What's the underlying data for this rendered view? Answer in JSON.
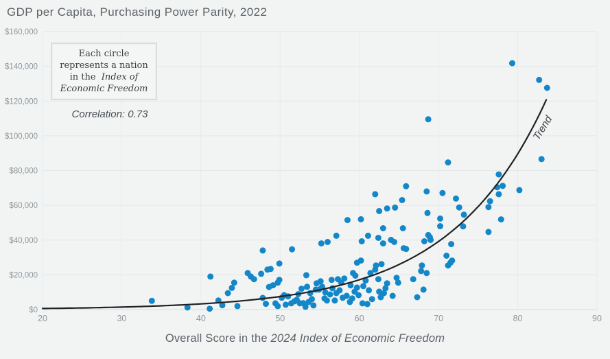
{
  "title": "GDP per Capita, Purchasing Power Parity, 2022",
  "annotation": {
    "line1": "Each circle",
    "line2": "represents a nation",
    "line3_regular": "in the  ",
    "line3_italic": "Index of",
    "line4_italic": "Economic Freedom"
  },
  "correlation_label": "Correlation: 0.73",
  "trend_label": "Trend",
  "x_axis_title": {
    "regular": "Overall Score in the ",
    "italic": "2024 Index of Economic Freedom"
  },
  "colors": {
    "background": "#f2f4f4",
    "point": "#1487c8",
    "trend": "#202124",
    "grid_horizontal": "#e2e6e7",
    "grid_vertical": "#e7eaeb",
    "baseline": "#d8dddf",
    "tick_text": "#8f969b",
    "title_text": "#5d6267"
  },
  "chart_data": {
    "type": "scatter",
    "title": "GDP per Capita, Purchasing Power Parity, 2022",
    "xlabel": "Overall Score in the 2024 Index of Economic Freedom",
    "ylabel": "",
    "xlim": [
      20,
      90
    ],
    "ylim": [
      0,
      160000
    ],
    "xticks": [
      20,
      30,
      40,
      50,
      60,
      70,
      80,
      90
    ],
    "yticks": [
      0,
      20000,
      40000,
      60000,
      80000,
      100000,
      120000,
      140000,
      160000
    ],
    "ytick_labels": [
      "$0",
      "$20,000",
      "$40,000",
      "$60,000",
      "$80,000",
      "$100,000",
      "$120,000",
      "$140,000",
      "$160,000"
    ],
    "grid": true,
    "correlation": 0.73,
    "annotation_text": "Each circle represents a nation in the Index of Economic Freedom",
    "trend": {
      "type": "exponential",
      "a": 120,
      "b": 0.0827,
      "x_start": 20,
      "x_end": 83.8,
      "label": "Trend"
    },
    "points": [
      [
        33.8,
        5000
      ],
      [
        38.3,
        1200
      ],
      [
        41.1,
        500
      ],
      [
        41.2,
        19000
      ],
      [
        42.2,
        5200
      ],
      [
        42.7,
        2500
      ],
      [
        43.4,
        9500
      ],
      [
        43.9,
        12500
      ],
      [
        44.2,
        15500
      ],
      [
        44.6,
        2000
      ],
      [
        45.9,
        21000
      ],
      [
        46.3,
        19000
      ],
      [
        46.7,
        17500
      ],
      [
        47.6,
        20600
      ],
      [
        47.8,
        6700
      ],
      [
        47.8,
        34000
      ],
      [
        48.2,
        3300
      ],
      [
        48.4,
        23000
      ],
      [
        48.6,
        13000
      ],
      [
        48.8,
        23400
      ],
      [
        49.1,
        14000
      ],
      [
        49.4,
        3600
      ],
      [
        49.7,
        15500
      ],
      [
        49.7,
        2000
      ],
      [
        49.9,
        17100
      ],
      [
        49.9,
        26500
      ],
      [
        50.2,
        6800
      ],
      [
        50.5,
        8300
      ],
      [
        50.7,
        2800
      ],
      [
        51.0,
        7600
      ],
      [
        51.4,
        3600
      ],
      [
        51.5,
        34700
      ],
      [
        51.8,
        4800
      ],
      [
        52.1,
        5600
      ],
      [
        52.3,
        8900
      ],
      [
        52.5,
        3600
      ],
      [
        52.7,
        12000
      ],
      [
        52.9,
        3700
      ],
      [
        53.2,
        1600
      ],
      [
        53.3,
        19800
      ],
      [
        53.4,
        13100
      ],
      [
        53.6,
        4400
      ],
      [
        53.8,
        9500
      ],
      [
        54.0,
        6000
      ],
      [
        54.2,
        2400
      ],
      [
        54.5,
        11500
      ],
      [
        54.6,
        15100
      ],
      [
        54.9,
        11500
      ],
      [
        55.1,
        16300
      ],
      [
        55.2,
        38100
      ],
      [
        55.3,
        13100
      ],
      [
        55.6,
        6400
      ],
      [
        55.7,
        9900
      ],
      [
        55.9,
        5200
      ],
      [
        56.0,
        38900
      ],
      [
        56.3,
        8700
      ],
      [
        56.5,
        17100
      ],
      [
        56.6,
        12300
      ],
      [
        56.9,
        5200
      ],
      [
        57.1,
        9500
      ],
      [
        57.1,
        42500
      ],
      [
        57.3,
        17500
      ],
      [
        57.5,
        11100
      ],
      [
        57.7,
        15500
      ],
      [
        57.9,
        6800
      ],
      [
        58.1,
        17900
      ],
      [
        58.4,
        7900
      ],
      [
        58.5,
        51500
      ],
      [
        58.8,
        4400
      ],
      [
        58.9,
        13900
      ],
      [
        59.1,
        6400
      ],
      [
        59.2,
        21000
      ],
      [
        59.4,
        10300
      ],
      [
        59.5,
        19500
      ],
      [
        59.7,
        27000
      ],
      [
        59.7,
        12700
      ],
      [
        59.9,
        8300
      ],
      [
        60.2,
        28200
      ],
      [
        60.2,
        52000
      ],
      [
        60.3,
        39300
      ],
      [
        60.4,
        3600
      ],
      [
        60.5,
        13500
      ],
      [
        60.8,
        16700
      ],
      [
        61.0,
        3200
      ],
      [
        61.1,
        42500
      ],
      [
        61.2,
        11100
      ],
      [
        61.4,
        21000
      ],
      [
        61.6,
        6000
      ],
      [
        62.0,
        23000
      ],
      [
        62.0,
        66400
      ],
      [
        62.1,
        25400
      ],
      [
        62.4,
        41300
      ],
      [
        62.4,
        17500
      ],
      [
        62.5,
        10300
      ],
      [
        62.5,
        56700
      ],
      [
        62.7,
        7100
      ],
      [
        62.8,
        26200
      ],
      [
        63.0,
        38100
      ],
      [
        63.0,
        46800
      ],
      [
        63.1,
        9500
      ],
      [
        63.3,
        12300
      ],
      [
        63.5,
        15100
      ],
      [
        63.5,
        58200
      ],
      [
        64.0,
        40100
      ],
      [
        64.2,
        7900
      ],
      [
        64.4,
        38900
      ],
      [
        64.5,
        58700
      ],
      [
        64.7,
        18300
      ],
      [
        64.9,
        15500
      ],
      [
        65.4,
        63000
      ],
      [
        65.5,
        46800
      ],
      [
        65.6,
        35300
      ],
      [
        65.9,
        34900
      ],
      [
        65.9,
        71000
      ],
      [
        66.8,
        17500
      ],
      [
        67.3,
        7100
      ],
      [
        67.8,
        22200
      ],
      [
        67.9,
        25400
      ],
      [
        68.1,
        11500
      ],
      [
        68.2,
        39300
      ],
      [
        68.5,
        21000
      ],
      [
        68.5,
        68000
      ],
      [
        68.6,
        55600
      ],
      [
        68.7,
        42900
      ],
      [
        68.7,
        109500
      ],
      [
        68.9,
        41700
      ],
      [
        69.0,
        40100
      ],
      [
        70.2,
        52400
      ],
      [
        70.2,
        48000
      ],
      [
        70.5,
        67100
      ],
      [
        71.0,
        31000
      ],
      [
        71.2,
        84700
      ],
      [
        71.2,
        25400
      ],
      [
        71.5,
        27000
      ],
      [
        71.6,
        37700
      ],
      [
        71.7,
        28200
      ],
      [
        72.2,
        63900
      ],
      [
        72.6,
        58800
      ],
      [
        73.1,
        47900
      ],
      [
        73.2,
        54600
      ],
      [
        76.3,
        59000
      ],
      [
        76.3,
        44700
      ],
      [
        76.5,
        62400
      ],
      [
        77.4,
        70400
      ],
      [
        77.6,
        77800
      ],
      [
        77.6,
        66400
      ],
      [
        77.9,
        51900
      ],
      [
        78.1,
        71200
      ],
      [
        79.3,
        141800
      ],
      [
        80.2,
        68800
      ],
      [
        82.7,
        132200
      ],
      [
        83.0,
        86600
      ],
      [
        83.7,
        127600
      ]
    ]
  }
}
